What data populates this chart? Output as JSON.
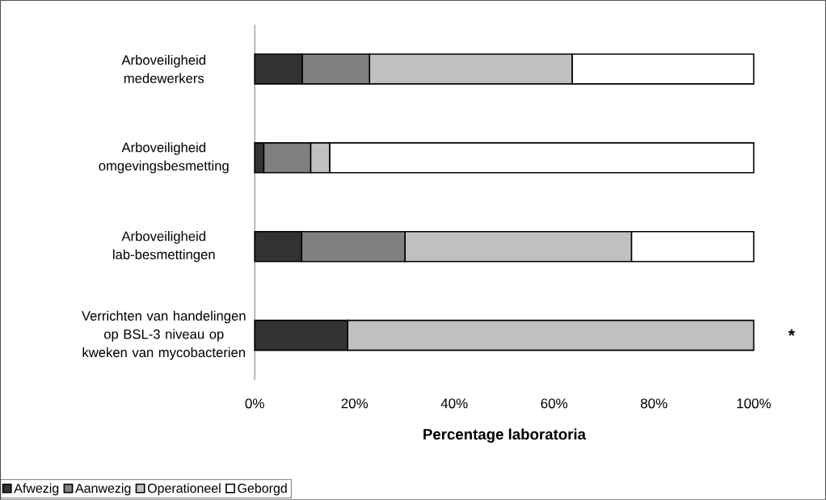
{
  "chart_data": {
    "type": "bar",
    "orientation": "horizontal",
    "stacked": true,
    "xlabel": "Percentage laboratoria",
    "categories": [
      "Arboveiligheid medewerkers",
      "Arboveiligheid omgevingsbesmetting",
      "Arboveiligheid lab-besmettingen",
      "Verrichten van handelingen op BSL-3 niveau op kweken van mycobacterien"
    ],
    "series": [
      {
        "name": "Afwezig",
        "color": "#333333",
        "values": [
          9.5,
          1.8,
          9.4,
          18.6
        ]
      },
      {
        "name": "Aanwezig",
        "color": "#808080",
        "values": [
          13.5,
          9.4,
          20.7,
          0
        ]
      },
      {
        "name": "Operationeel",
        "color": "#c0c0c0",
        "values": [
          40.6,
          3.8,
          45.4,
          81.4
        ]
      },
      {
        "name": "Geborgd",
        "color": "#ffffff",
        "values": [
          36.4,
          85.0,
          24.5,
          0
        ]
      }
    ],
    "xlim": [
      0,
      100
    ],
    "xticks": [
      {
        "value": 0,
        "label": "0%"
      },
      {
        "value": 20,
        "label": "20%"
      },
      {
        "value": 40,
        "label": "40%"
      },
      {
        "value": 60,
        "label": "60%"
      },
      {
        "value": 80,
        "label": "80%"
      },
      {
        "value": 100,
        "label": "100%"
      }
    ],
    "annotations": [
      "*"
    ],
    "legend": "bottom left",
    "grid": false
  }
}
